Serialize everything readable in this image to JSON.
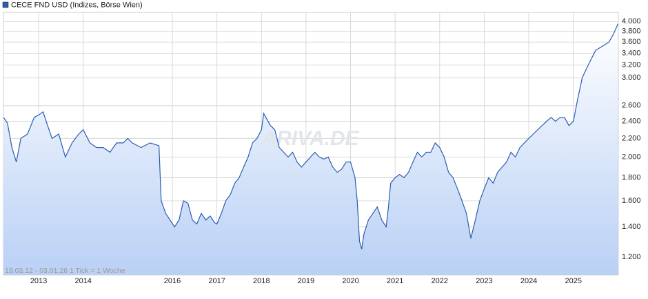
{
  "chart_data": {
    "type": "line",
    "title": "CECE FND USD (Indizes, Börse Wien)",
    "watermark": "ARIVA.DE",
    "footer": "19.03.12 - 03.01.26   1 Tick = 1 Woche",
    "log_scale": true,
    "grid": true,
    "x": [
      2012.21,
      2012.3,
      2012.4,
      2012.5,
      2012.6,
      2012.75,
      2012.9,
      2013.0,
      2013.1,
      2013.2,
      2013.3,
      2013.45,
      2013.6,
      2013.75,
      2013.9,
      2014.0,
      2014.15,
      2014.3,
      2014.45,
      2014.6,
      2014.75,
      2014.9,
      2015.0,
      2015.1,
      2015.3,
      2015.5,
      2015.7,
      2015.75,
      2015.85,
      2015.95,
      2016.05,
      2016.15,
      2016.25,
      2016.35,
      2016.45,
      2016.55,
      2016.65,
      2016.75,
      2016.85,
      2016.95,
      2017.0,
      2017.1,
      2017.2,
      2017.3,
      2017.4,
      2017.5,
      2017.6,
      2017.7,
      2017.8,
      2017.9,
      2018.0,
      2018.05,
      2018.1,
      2018.2,
      2018.3,
      2018.4,
      2018.5,
      2018.6,
      2018.7,
      2018.8,
      2018.9,
      2019.0,
      2019.1,
      2019.2,
      2019.3,
      2019.4,
      2019.5,
      2019.6,
      2019.7,
      2019.8,
      2019.9,
      2020.0,
      2020.1,
      2020.15,
      2020.2,
      2020.25,
      2020.3,
      2020.4,
      2020.5,
      2020.6,
      2020.7,
      2020.8,
      2020.85,
      2020.9,
      2021.0,
      2021.1,
      2021.2,
      2021.3,
      2021.4,
      2021.5,
      2021.6,
      2021.7,
      2021.8,
      2021.9,
      2022.0,
      2022.1,
      2022.2,
      2022.3,
      2022.4,
      2022.5,
      2022.6,
      2022.7,
      2022.8,
      2022.9,
      2023.0,
      2023.1,
      2023.2,
      2023.3,
      2023.4,
      2023.5,
      2023.6,
      2023.7,
      2023.8,
      2023.9,
      2024.0,
      2024.1,
      2024.2,
      2024.3,
      2024.4,
      2024.5,
      2024.6,
      2024.7,
      2024.8,
      2024.9,
      2025.0,
      2025.1,
      2025.2,
      2025.3,
      2025.4,
      2025.5,
      2025.6,
      2025.7,
      2025.8,
      2025.9,
      2026.0
    ],
    "series": [
      {
        "name": "CECE FND USD (Indizes, Börse Wien)",
        "color": "#2a5cb0",
        "values": [
          2450,
          2380,
          2100,
          1950,
          2200,
          2250,
          2450,
          2480,
          2520,
          2350,
          2200,
          2250,
          2000,
          2150,
          2250,
          2300,
          2150,
          2100,
          2100,
          2050,
          2150,
          2150,
          2200,
          2150,
          2100,
          2150,
          2120,
          1600,
          1500,
          1450,
          1400,
          1450,
          1600,
          1580,
          1450,
          1420,
          1500,
          1450,
          1480,
          1430,
          1420,
          1500,
          1600,
          1650,
          1750,
          1800,
          1900,
          2000,
          2150,
          2200,
          2300,
          2500,
          2450,
          2350,
          2300,
          2100,
          2050,
          2000,
          2050,
          1950,
          1900,
          1950,
          2000,
          2050,
          2000,
          1980,
          2000,
          1900,
          1850,
          1880,
          1950,
          1950,
          1800,
          1600,
          1300,
          1250,
          1350,
          1450,
          1500,
          1550,
          1450,
          1400,
          1550,
          1750,
          1800,
          1830,
          1800,
          1850,
          1950,
          2050,
          2000,
          2050,
          2050,
          2150,
          2100,
          2000,
          1850,
          1800,
          1700,
          1600,
          1500,
          1320,
          1450,
          1600,
          1700,
          1800,
          1750,
          1850,
          1900,
          1950,
          2050,
          2000,
          2100,
          2150,
          2200,
          2250,
          2300,
          2350,
          2400,
          2450,
          2400,
          2450,
          2450,
          2350,
          2400,
          2700,
          3000,
          3150,
          3300,
          3450,
          3500,
          3550,
          3600,
          3750,
          3950
        ]
      }
    ],
    "xlim": [
      2012.21,
      2026.01
    ],
    "xticks": [
      2013,
      2014,
      2016,
      2017,
      2018,
      2019,
      2020,
      2021,
      2022,
      2023,
      2024,
      2025
    ],
    "ylim": [
      1095,
      4190
    ],
    "yticks": [
      {
        "value": 1200,
        "label": "1.200"
      },
      {
        "value": 1400,
        "label": "1.400"
      },
      {
        "value": 1600,
        "label": "1.600"
      },
      {
        "value": 1800,
        "label": "1.800"
      },
      {
        "value": 2000,
        "label": "2.000"
      },
      {
        "value": 2200,
        "label": "2.200"
      },
      {
        "value": 2400,
        "label": "2.400"
      },
      {
        "value": 2600,
        "label": "2.600"
      },
      {
        "value": 3000,
        "label": "3.000"
      },
      {
        "value": 3200,
        "label": "3.200"
      },
      {
        "value": 3400,
        "label": "3.400"
      },
      {
        "value": 3600,
        "label": "3.600"
      },
      {
        "value": 3800,
        "label": "3.800"
      },
      {
        "value": 4000,
        "label": "4.000"
      }
    ]
  }
}
